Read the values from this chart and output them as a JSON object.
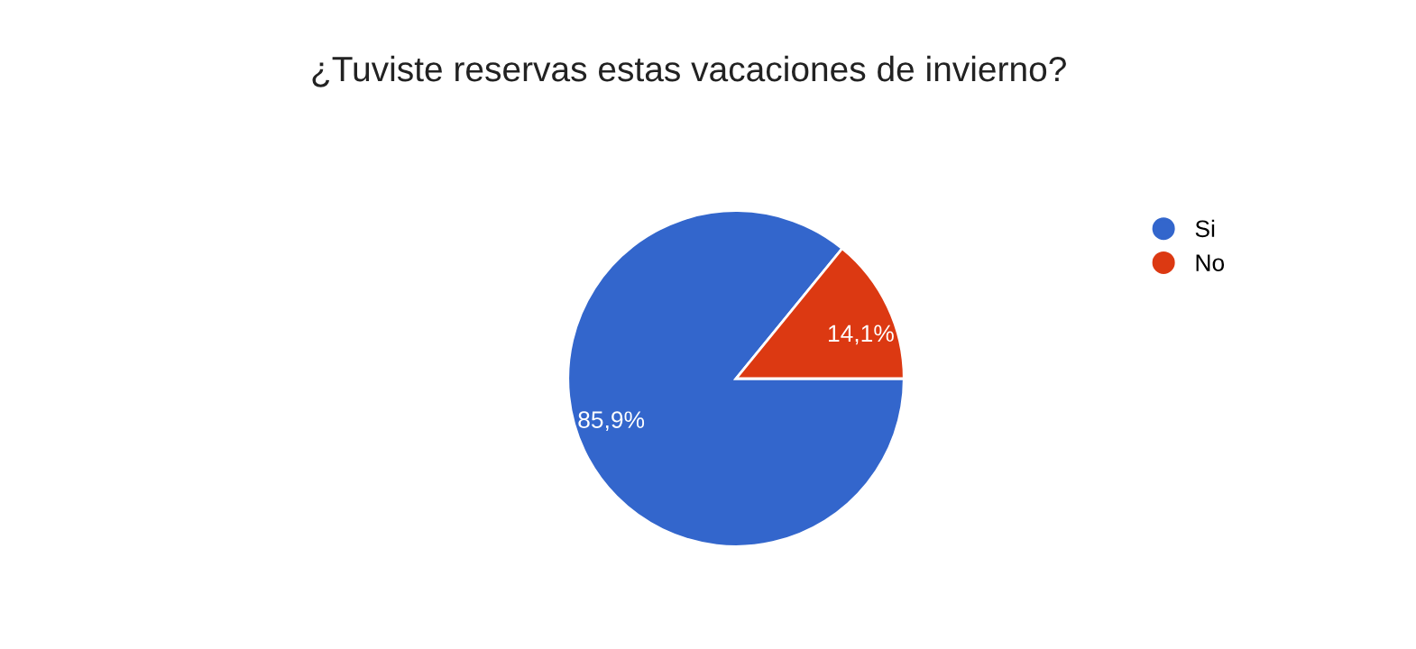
{
  "chart_data": {
    "type": "pie",
    "title": "¿Tuviste reservas estas vacaciones de invierno?",
    "categories": [
      "Si",
      "No"
    ],
    "values": [
      85.9,
      14.1
    ],
    "colors": [
      "#3366cc",
      "#dc3912"
    ],
    "value_labels": [
      "85,9%",
      "14,1%"
    ],
    "legend": "top right"
  }
}
